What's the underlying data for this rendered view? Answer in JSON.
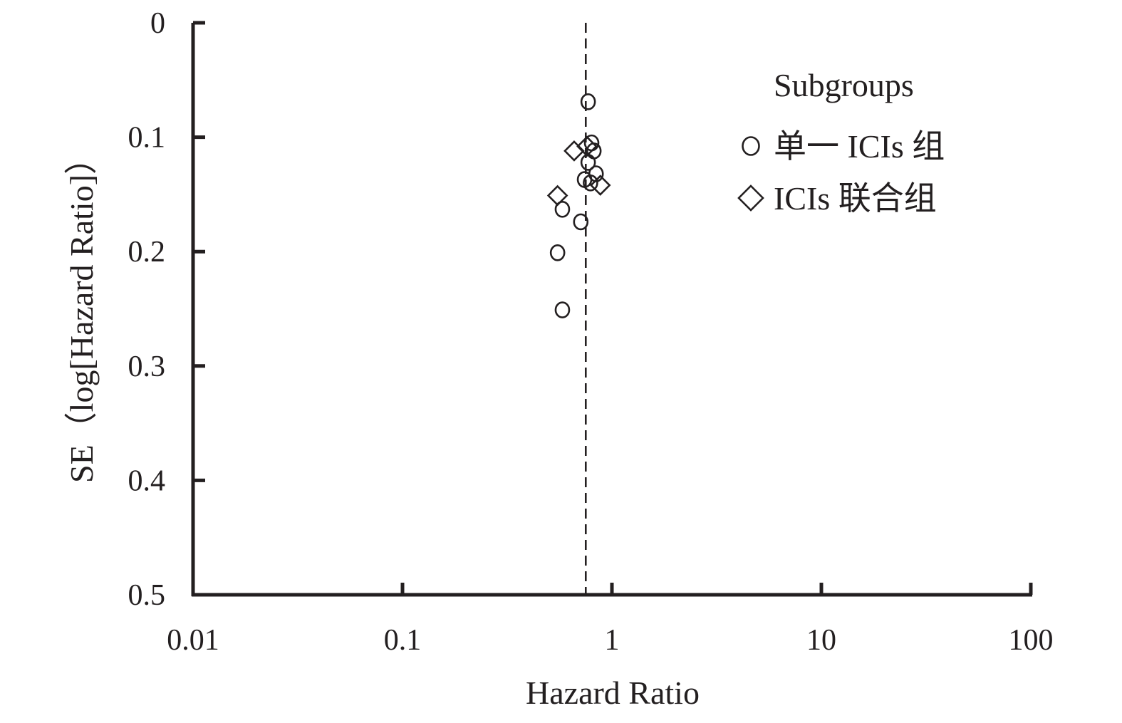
{
  "chart_data": {
    "type": "scatter",
    "xlabel": "Hazard Ratio",
    "ylabel": "SE（log[Hazard Ratio]）",
    "x_scale": "log",
    "xlim": [
      0.01,
      100
    ],
    "ylim": [
      0,
      0.5
    ],
    "y_inverted": true,
    "x_ticks": [
      "0.01",
      "0.1",
      "1",
      "10",
      "100"
    ],
    "y_ticks": [
      "0",
      "0.1",
      "0.2",
      "0.3",
      "0.4",
      "0.5"
    ],
    "reference_line_x": 0.75,
    "grid": false,
    "legend": {
      "title": "Subgroups",
      "placement": "top-right"
    },
    "series": [
      {
        "name": "单一 ICIs 组",
        "marker": "circle",
        "points": [
          {
            "x": 0.77,
            "y": 0.069
          },
          {
            "x": 0.8,
            "y": 0.105
          },
          {
            "x": 0.82,
            "y": 0.112
          },
          {
            "x": 0.77,
            "y": 0.122
          },
          {
            "x": 0.84,
            "y": 0.132
          },
          {
            "x": 0.74,
            "y": 0.137
          },
          {
            "x": 0.79,
            "y": 0.14
          },
          {
            "x": 0.58,
            "y": 0.163
          },
          {
            "x": 0.71,
            "y": 0.174
          },
          {
            "x": 0.55,
            "y": 0.201
          },
          {
            "x": 0.58,
            "y": 0.251
          }
        ]
      },
      {
        "name": "ICIs 联合组",
        "marker": "diamond",
        "points": [
          {
            "x": 0.66,
            "y": 0.112
          },
          {
            "x": 0.76,
            "y": 0.108
          },
          {
            "x": 0.88,
            "y": 0.142
          },
          {
            "x": 0.55,
            "y": 0.151
          }
        ]
      }
    ]
  }
}
